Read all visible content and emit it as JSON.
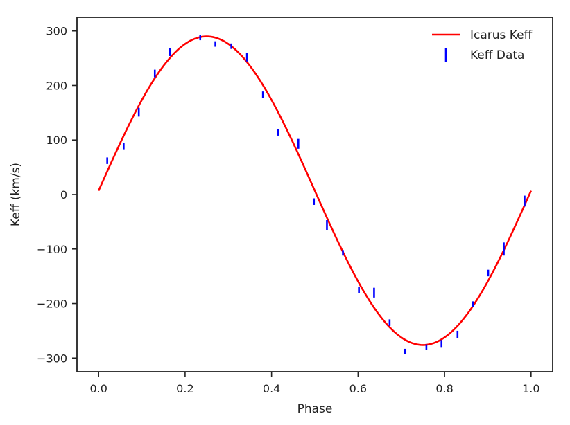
{
  "chart_data": {
    "type": "line",
    "xlabel": "Phase",
    "ylabel": "Keff (km/s)",
    "xlim": [
      -0.05,
      1.05
    ],
    "ylim": [
      -325,
      325
    ],
    "xticks": [
      0.0,
      0.2,
      0.4,
      0.6,
      0.8,
      1.0
    ],
    "xtick_labels": [
      "0.0",
      "0.2",
      "0.4",
      "0.6",
      "0.8",
      "1.0"
    ],
    "yticks": [
      -300,
      -200,
      -100,
      0,
      100,
      200,
      300
    ],
    "ytick_labels": [
      "−300",
      "−200",
      "−100",
      "0",
      "100",
      "200",
      "300"
    ],
    "grid": false,
    "legend_position": "top-right",
    "model": {
      "name": "Icarus Keff",
      "color": "#ff0000",
      "offset": 7,
      "amplitude": 283,
      "phase_start": 0.0,
      "phase_end": 1.0
    },
    "data": {
      "name": "Keff Data",
      "color": "#0000ff",
      "points": [
        {
          "x": 0.02,
          "y": 62,
          "err": 6
        },
        {
          "x": 0.058,
          "y": 89,
          "err": 6
        },
        {
          "x": 0.093,
          "y": 151,
          "err": 8
        },
        {
          "x": 0.13,
          "y": 222,
          "err": 7
        },
        {
          "x": 0.165,
          "y": 261,
          "err": 7
        },
        {
          "x": 0.235,
          "y": 288,
          "err": 5
        },
        {
          "x": 0.27,
          "y": 276,
          "err": 5
        },
        {
          "x": 0.307,
          "y": 272,
          "err": 5
        },
        {
          "x": 0.343,
          "y": 252,
          "err": 8
        },
        {
          "x": 0.38,
          "y": 183,
          "err": 6
        },
        {
          "x": 0.415,
          "y": 114,
          "err": 6
        },
        {
          "x": 0.462,
          "y": 93,
          "err": 9
        },
        {
          "x": 0.498,
          "y": -13,
          "err": 6
        },
        {
          "x": 0.528,
          "y": -56,
          "err": 9
        },
        {
          "x": 0.565,
          "y": -107,
          "err": 5
        },
        {
          "x": 0.602,
          "y": -175,
          "err": 6
        },
        {
          "x": 0.637,
          "y": -180,
          "err": 9
        },
        {
          "x": 0.673,
          "y": -235,
          "err": 6
        },
        {
          "x": 0.708,
          "y": -288,
          "err": 5
        },
        {
          "x": 0.758,
          "y": -280,
          "err": 5
        },
        {
          "x": 0.793,
          "y": -274,
          "err": 7
        },
        {
          "x": 0.83,
          "y": -257,
          "err": 7
        },
        {
          "x": 0.866,
          "y": -201,
          "err": 5
        },
        {
          "x": 0.901,
          "y": -144,
          "err": 6
        },
        {
          "x": 0.937,
          "y": -100,
          "err": 12
        },
        {
          "x": 0.985,
          "y": -12,
          "err": 10
        }
      ]
    }
  }
}
